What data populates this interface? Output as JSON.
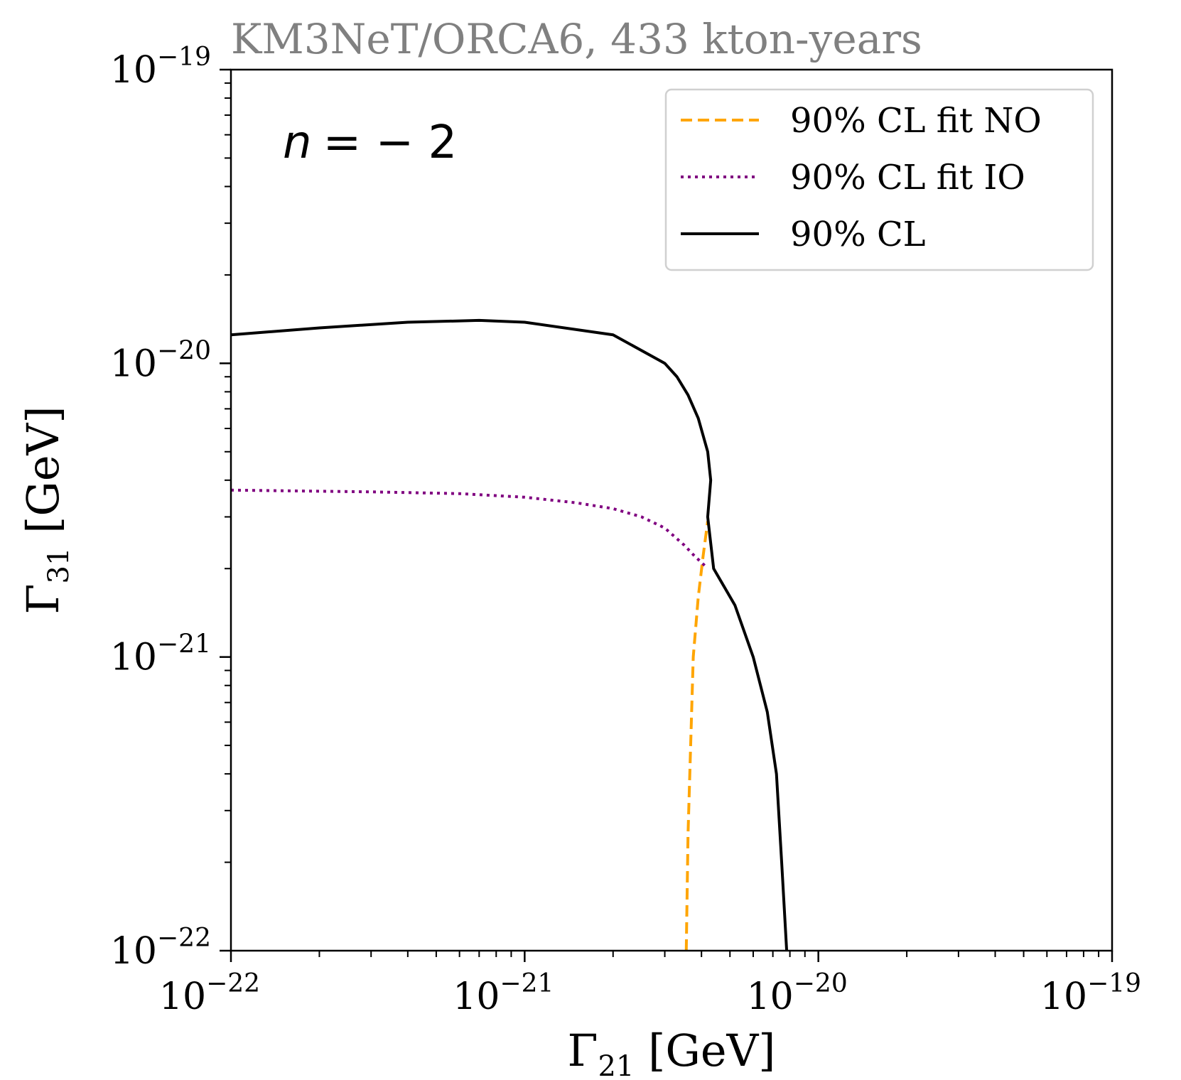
{
  "chart_data": {
    "type": "line",
    "title": "KM3NeT/ORCA6, 433 kton-years",
    "xlabel": {
      "symbol": "Γ",
      "sub": "21",
      "unit": " [GeV]"
    },
    "ylabel": {
      "symbol": "Γ",
      "sub": "31",
      "unit": " [GeV]"
    },
    "xscale": "log",
    "yscale": "log",
    "xlim": [
      1e-22,
      1e-19
    ],
    "ylim": [
      1e-22,
      1e-19
    ],
    "x_ticks": [
      {
        "base": "10",
        "exp": "−22",
        "value": 1e-22
      },
      {
        "base": "10",
        "exp": "−21",
        "value": 1e-21
      },
      {
        "base": "10",
        "exp": "−20",
        "value": 1e-20
      },
      {
        "base": "10",
        "exp": "−19",
        "value": 1e-19
      }
    ],
    "y_ticks": [
      {
        "base": "10",
        "exp": "−22",
        "value": 1e-22
      },
      {
        "base": "10",
        "exp": "−21",
        "value": 1e-21
      },
      {
        "base": "10",
        "exp": "−20",
        "value": 1e-20
      },
      {
        "base": "10",
        "exp": "−19",
        "value": 1e-19
      }
    ],
    "annotation": {
      "lhs": "n",
      "rhs": "= − 2",
      "position": "top-left"
    },
    "legend": {
      "position": "top-right"
    },
    "series": [
      {
        "name": "90% CL fit NO",
        "color": "#FFA500",
        "style": "dashed",
        "points": [
          [
            3.55e-21,
            1e-22
          ],
          [
            3.6e-21,
            2.5e-22
          ],
          [
            3.75e-21,
            1e-21
          ],
          [
            3.9e-21,
            1.6e-21
          ],
          [
            4.05e-21,
            2.2e-21
          ],
          [
            4.2e-21,
            2.9e-21
          ]
        ]
      },
      {
        "name": "90% CL fit IO",
        "color": "#800080",
        "style": "dotted",
        "points": [
          [
            1e-22,
            3.7e-21
          ],
          [
            3e-22,
            3.65e-21
          ],
          [
            6e-22,
            3.6e-21
          ],
          [
            1e-21,
            3.5e-21
          ],
          [
            1.5e-21,
            3.35e-21
          ],
          [
            2e-21,
            3.2e-21
          ],
          [
            2.5e-21,
            3e-21
          ],
          [
            3e-21,
            2.75e-21
          ],
          [
            3.5e-21,
            2.4e-21
          ],
          [
            3.8e-21,
            2.2e-21
          ],
          [
            4.1e-21,
            2.05e-21
          ]
        ]
      },
      {
        "name": "90% CL",
        "color": "#000000",
        "style": "solid",
        "points": [
          [
            1e-22,
            1.25e-20
          ],
          [
            2e-22,
            1.32e-20
          ],
          [
            4e-22,
            1.38e-20
          ],
          [
            7e-22,
            1.4e-20
          ],
          [
            1e-21,
            1.38e-20
          ],
          [
            2e-21,
            1.25e-20
          ],
          [
            3e-21,
            1e-20
          ],
          [
            3.3e-21,
            9e-21
          ],
          [
            3.6e-21,
            7.8e-21
          ],
          [
            3.9e-21,
            6.5e-21
          ],
          [
            4.2e-21,
            5e-21
          ],
          [
            4.3e-21,
            4e-21
          ],
          [
            4.2e-21,
            3e-21
          ],
          [
            4.4e-21,
            2e-21
          ],
          [
            5.2e-21,
            1.5e-21
          ],
          [
            6e-21,
            1e-21
          ],
          [
            6.7e-21,
            6.5e-22
          ],
          [
            7.2e-21,
            4e-22
          ],
          [
            7.5e-21,
            2e-22
          ],
          [
            7.8e-21,
            1e-22
          ]
        ]
      }
    ]
  }
}
